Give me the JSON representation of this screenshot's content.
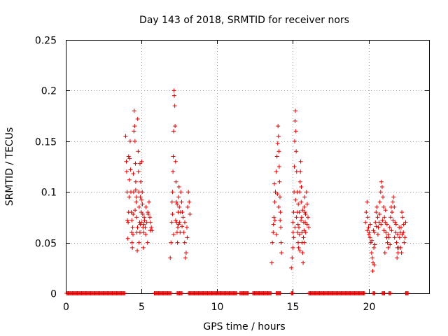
{
  "chart_data": {
    "type": "scatter",
    "title": "Day 143 of 2018, SRMTID for receiver nors",
    "xlabel": "GPS time / hours",
    "ylabel": "SRMTID / TECUs",
    "xlim": [
      0,
      24
    ],
    "ylim": [
      0,
      0.25
    ],
    "xticks": [
      0,
      5,
      10,
      15,
      20
    ],
    "xtick_labels": [
      "0",
      "5",
      "10",
      "15",
      "20"
    ],
    "yticks": [
      0,
      0.05,
      0.1,
      0.15,
      0.2,
      0.25
    ],
    "ytick_labels": [
      "0",
      "0.05",
      "0.1",
      "0.15",
      "0.2",
      "0.25"
    ],
    "grid": true,
    "marker": "plus",
    "color": "#e00000",
    "series": [
      {
        "name": "SRMTID",
        "points": [
          [
            3.95,
            0.155
          ],
          [
            4.0,
            0.13
          ],
          [
            4.02,
            0.12
          ],
          [
            4.05,
            0.1
          ],
          [
            4.07,
            0.072
          ],
          [
            4.1,
            0.054
          ],
          [
            4.12,
            0.07
          ],
          [
            4.15,
            0.08
          ],
          [
            4.18,
            0.095
          ],
          [
            4.2,
            0.112
          ],
          [
            4.22,
            0.133
          ],
          [
            4.25,
            0.15
          ],
          [
            4.28,
            0.122
          ],
          [
            4.3,
            0.1
          ],
          [
            4.32,
            0.08
          ],
          [
            4.35,
            0.06
          ],
          [
            4.38,
            0.05
          ],
          [
            4.4,
            0.045
          ],
          [
            4.42,
            0.065
          ],
          [
            4.45,
            0.078
          ],
          [
            4.48,
            0.1
          ],
          [
            4.5,
            0.16
          ],
          [
            4.52,
            0.18
          ],
          [
            4.55,
            0.165
          ],
          [
            4.57,
            0.15
          ],
          [
            4.6,
            0.128
          ],
          [
            4.62,
            0.11
          ],
          [
            4.65,
            0.09
          ],
          [
            4.68,
            0.075
          ],
          [
            4.7,
            0.06
          ],
          [
            4.72,
            0.042
          ],
          [
            4.75,
            0.172
          ],
          [
            4.78,
            0.14
          ],
          [
            4.8,
            0.12
          ],
          [
            4.82,
            0.1
          ],
          [
            4.85,
            0.085
          ],
          [
            4.88,
            0.07
          ],
          [
            4.9,
            0.06
          ],
          [
            4.93,
            0.095
          ],
          [
            4.95,
            0.11
          ],
          [
            4.98,
            0.08
          ],
          [
            5.0,
            0.07
          ],
          [
            5.02,
            0.13
          ],
          [
            5.05,
            0.1
          ],
          [
            5.08,
            0.078
          ],
          [
            5.1,
            0.065
          ],
          [
            5.12,
            0.045
          ],
          [
            5.15,
            0.06
          ],
          [
            5.18,
            0.075
          ],
          [
            5.2,
            0.072
          ],
          [
            5.25,
            0.065
          ],
          [
            5.3,
            0.085
          ],
          [
            5.35,
            0.07
          ],
          [
            5.4,
            0.05
          ],
          [
            5.45,
            0.078
          ],
          [
            5.5,
            0.09
          ],
          [
            5.55,
            0.075
          ],
          [
            5.6,
            0.07
          ],
          [
            5.65,
            0.065
          ],
          [
            5.7,
            0.062
          ],
          [
            4.36,
            0.072
          ],
          [
            4.44,
            0.058
          ],
          [
            4.58,
            0.082
          ],
          [
            4.66,
            0.095
          ],
          [
            4.74,
            0.065
          ],
          [
            4.84,
            0.05
          ],
          [
            4.92,
            0.068
          ],
          [
            5.06,
            0.088
          ],
          [
            5.16,
            0.068
          ],
          [
            5.28,
            0.058
          ],
          [
            5.42,
            0.08
          ],
          [
            5.58,
            0.062
          ],
          [
            4.15,
            0.135
          ],
          [
            4.46,
            0.118
          ],
          [
            4.62,
            0.102
          ],
          [
            4.9,
            0.128
          ],
          [
            5.0,
            0.092
          ],
          [
            6.9,
            0.035
          ],
          [
            6.95,
            0.05
          ],
          [
            7.0,
            0.07
          ],
          [
            7.02,
            0.09
          ],
          [
            7.05,
            0.1
          ],
          [
            7.08,
            0.12
          ],
          [
            7.1,
            0.135
          ],
          [
            7.12,
            0.16
          ],
          [
            7.15,
            0.2
          ],
          [
            7.17,
            0.195
          ],
          [
            7.2,
            0.185
          ],
          [
            7.22,
            0.165
          ],
          [
            7.25,
            0.13
          ],
          [
            7.28,
            0.11
          ],
          [
            7.3,
            0.09
          ],
          [
            7.32,
            0.07
          ],
          [
            7.35,
            0.06
          ],
          [
            7.38,
            0.05
          ],
          [
            7.4,
            0.065
          ],
          [
            7.42,
            0.08
          ],
          [
            7.45,
            0.095
          ],
          [
            7.48,
            0.105
          ],
          [
            7.5,
            0.085
          ],
          [
            7.52,
            0.07
          ],
          [
            7.55,
            0.06
          ],
          [
            7.6,
            0.1
          ],
          [
            7.65,
            0.09
          ],
          [
            7.7,
            0.08
          ],
          [
            7.75,
            0.075
          ],
          [
            7.8,
            0.06
          ],
          [
            7.85,
            0.05
          ],
          [
            7.9,
            0.035
          ],
          [
            7.95,
            0.04
          ],
          [
            8.0,
            0.065
          ],
          [
            8.05,
            0.085
          ],
          [
            8.1,
            0.1
          ],
          [
            8.15,
            0.09
          ],
          [
            8.2,
            0.078
          ],
          [
            7.05,
            0.078
          ],
          [
            7.12,
            0.058
          ],
          [
            7.26,
            0.072
          ],
          [
            7.36,
            0.088
          ],
          [
            7.46,
            0.068
          ],
          [
            7.58,
            0.08
          ],
          [
            7.68,
            0.066
          ],
          [
            7.86,
            0.07
          ],
          [
            8.02,
            0.055
          ],
          [
            13.6,
            0.03
          ],
          [
            13.65,
            0.05
          ],
          [
            13.7,
            0.06
          ],
          [
            13.75,
            0.075
          ],
          [
            13.8,
            0.09
          ],
          [
            13.85,
            0.1
          ],
          [
            13.9,
            0.12
          ],
          [
            13.95,
            0.135
          ],
          [
            14.0,
            0.148
          ],
          [
            14.02,
            0.165
          ],
          [
            14.05,
            0.155
          ],
          [
            14.08,
            0.14
          ],
          [
            14.1,
            0.125
          ],
          [
            14.12,
            0.11
          ],
          [
            14.15,
            0.095
          ],
          [
            14.18,
            0.08
          ],
          [
            14.2,
            0.065
          ],
          [
            14.22,
            0.05
          ],
          [
            14.25,
            0.04
          ],
          [
            13.72,
            0.068
          ],
          [
            13.82,
            0.072
          ],
          [
            13.92,
            0.058
          ],
          [
            14.06,
            0.085
          ],
          [
            14.16,
            0.072
          ],
          [
            13.78,
            0.108
          ],
          [
            13.98,
            0.098
          ],
          [
            14.9,
            0.025
          ],
          [
            14.95,
            0.035
          ],
          [
            15.0,
            0.045
          ],
          [
            15.02,
            0.06
          ],
          [
            15.05,
            0.08
          ],
          [
            15.08,
            0.1
          ],
          [
            15.1,
            0.125
          ],
          [
            15.12,
            0.15
          ],
          [
            15.15,
            0.17
          ],
          [
            15.17,
            0.18
          ],
          [
            15.2,
            0.16
          ],
          [
            15.22,
            0.14
          ],
          [
            15.25,
            0.12
          ],
          [
            15.28,
            0.1
          ],
          [
            15.3,
            0.08
          ],
          [
            15.32,
            0.06
          ],
          [
            15.35,
            0.05
          ],
          [
            15.38,
            0.045
          ],
          [
            15.4,
            0.065
          ],
          [
            15.42,
            0.08
          ],
          [
            15.45,
            0.1
          ],
          [
            15.48,
            0.11
          ],
          [
            15.5,
            0.12
          ],
          [
            15.52,
            0.13
          ],
          [
            15.55,
            0.09
          ],
          [
            15.58,
            0.075
          ],
          [
            15.6,
            0.06
          ],
          [
            15.62,
            0.05
          ],
          [
            15.65,
            0.04
          ],
          [
            15.68,
            0.03
          ],
          [
            15.7,
            0.055
          ],
          [
            15.72,
            0.07
          ],
          [
            15.75,
            0.085
          ],
          [
            15.78,
            0.095
          ],
          [
            15.8,
            0.08
          ],
          [
            15.82,
            0.07
          ],
          [
            15.85,
            0.06
          ],
          [
            15.9,
            0.1
          ],
          [
            15.95,
            0.088
          ],
          [
            16.0,
            0.075
          ],
          [
            16.05,
            0.065
          ],
          [
            15.0,
            0.07
          ],
          [
            15.06,
            0.055
          ],
          [
            15.14,
            0.065
          ],
          [
            15.24,
            0.075
          ],
          [
            15.34,
            0.068
          ],
          [
            15.44,
            0.058
          ],
          [
            15.54,
            0.072
          ],
          [
            15.64,
            0.082
          ],
          [
            15.74,
            0.062
          ],
          [
            15.84,
            0.078
          ],
          [
            15.94,
            0.068
          ],
          [
            15.18,
            0.092
          ],
          [
            15.36,
            0.088
          ],
          [
            15.46,
            0.042
          ],
          [
            15.56,
            0.105
          ],
          [
            15.76,
            0.05
          ],
          [
            19.8,
            0.07
          ],
          [
            19.85,
            0.08
          ],
          [
            19.9,
            0.09
          ],
          [
            19.95,
            0.075
          ],
          [
            20.0,
            0.065
          ],
          [
            20.05,
            0.06
          ],
          [
            20.1,
            0.055
          ],
          [
            20.15,
            0.05
          ],
          [
            20.2,
            0.04
          ],
          [
            20.25,
            0.035
          ],
          [
            20.3,
            0.03
          ],
          [
            20.35,
            0.045
          ],
          [
            20.4,
            0.06
          ],
          [
            20.45,
            0.07
          ],
          [
            20.5,
            0.08
          ],
          [
            20.55,
            0.085
          ],
          [
            20.6,
            0.075
          ],
          [
            20.65,
            0.065
          ],
          [
            20.7,
            0.07
          ],
          [
            20.75,
            0.09
          ],
          [
            20.8,
            0.1
          ],
          [
            20.85,
            0.11
          ],
          [
            20.9,
            0.105
          ],
          [
            20.95,
            0.095
          ],
          [
            21.0,
            0.085
          ],
          [
            21.05,
            0.075
          ],
          [
            21.1,
            0.07
          ],
          [
            21.15,
            0.06
          ],
          [
            21.2,
            0.055
          ],
          [
            21.25,
            0.05
          ],
          [
            21.3,
            0.045
          ],
          [
            21.35,
            0.055
          ],
          [
            21.4,
            0.065
          ],
          [
            21.45,
            0.075
          ],
          [
            21.5,
            0.085
          ],
          [
            21.55,
            0.08
          ],
          [
            21.6,
            0.09
          ],
          [
            21.65,
            0.095
          ],
          [
            21.7,
            0.085
          ],
          [
            21.75,
            0.07
          ],
          [
            21.8,
            0.06
          ],
          [
            21.85,
            0.05
          ],
          [
            21.9,
            0.045
          ],
          [
            21.95,
            0.04
          ],
          [
            22.0,
            0.045
          ],
          [
            22.05,
            0.055
          ],
          [
            22.1,
            0.06
          ],
          [
            22.15,
            0.065
          ],
          [
            22.2,
            0.08
          ],
          [
            22.25,
            0.075
          ],
          [
            22.3,
            0.06
          ],
          [
            22.35,
            0.05
          ],
          [
            22.4,
            0.055
          ],
          [
            22.45,
            0.07
          ],
          [
            19.92,
            0.062
          ],
          [
            20.02,
            0.058
          ],
          [
            20.12,
            0.068
          ],
          [
            20.22,
            0.052
          ],
          [
            20.32,
            0.062
          ],
          [
            20.42,
            0.048
          ],
          [
            20.52,
            0.066
          ],
          [
            20.62,
            0.058
          ],
          [
            20.72,
            0.078
          ],
          [
            20.82,
            0.068
          ],
          [
            20.92,
            0.072
          ],
          [
            21.02,
            0.062
          ],
          [
            21.12,
            0.082
          ],
          [
            21.22,
            0.068
          ],
          [
            21.32,
            0.058
          ],
          [
            21.42,
            0.048
          ],
          [
            21.52,
            0.062
          ],
          [
            21.62,
            0.072
          ],
          [
            21.72,
            0.055
          ],
          [
            21.82,
            0.068
          ],
          [
            21.92,
            0.058
          ],
          [
            22.02,
            0.065
          ],
          [
            22.12,
            0.045
          ],
          [
            22.22,
            0.058
          ],
          [
            22.32,
            0.068
          ],
          [
            20.28,
            0.022
          ],
          [
            20.38,
            0.028
          ],
          [
            21.08,
            0.04
          ],
          [
            21.88,
            0.035
          ],
          [
            22.18,
            0.04
          ]
        ]
      },
      {
        "name": "zero-baseline",
        "y": 0,
        "x_ranges": [
          [
            0.05,
            3.95
          ],
          [
            5.85,
            6.95
          ],
          [
            7.35,
            7.7
          ],
          [
            8.1,
            11.3
          ],
          [
            11.5,
            12.1
          ],
          [
            12.35,
            13.6
          ],
          [
            13.9,
            14.2
          ],
          [
            14.9,
            15.05
          ],
          [
            16.05,
            19.75
          ],
          [
            20.3,
            20.45
          ],
          [
            20.9,
            21.1
          ],
          [
            21.35,
            21.5
          ],
          [
            22.45,
            22.65
          ]
        ],
        "step": 0.055
      }
    ]
  }
}
